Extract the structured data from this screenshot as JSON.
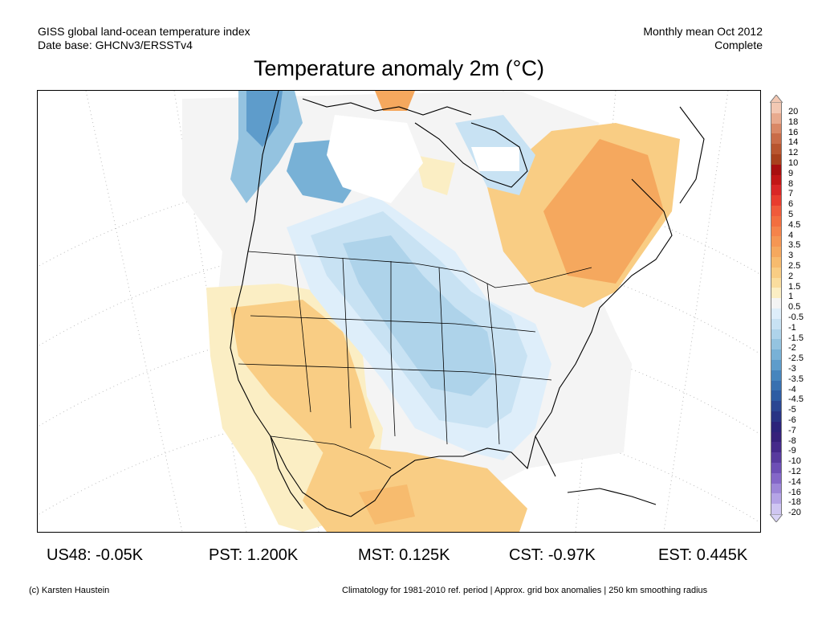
{
  "header": {
    "left_line1": "GISS global land-ocean temperature index",
    "left_line2": "Date base: GHCNv3/ERSSTv4",
    "right_line1": "Monthly mean Oct 2012",
    "right_line2": "Complete"
  },
  "title": "Temperature anomaly 2m (°C)",
  "colorbar": {
    "labels": [
      "20",
      "18",
      "16",
      "14",
      "12",
      "10",
      "9",
      "8",
      "7",
      "6",
      "5",
      "4.5",
      "4",
      "3.5",
      "3",
      "2.5",
      "2",
      "1.5",
      "1",
      "0.5",
      "-0.5",
      "-1",
      "-1.5",
      "-2",
      "-2.5",
      "-3",
      "-3.5",
      "-4",
      "-4.5",
      "-5",
      "-6",
      "-7",
      "-8",
      "-9",
      "-10",
      "-12",
      "-14",
      "-16",
      "-18",
      "-20"
    ],
    "colors": [
      "#f3c8b3",
      "#e8aa8e",
      "#d98866",
      "#c96c48",
      "#b8552f",
      "#a8401c",
      "#a80f0f",
      "#c21616",
      "#d92626",
      "#e83c2e",
      "#f05a3a",
      "#f36e3f",
      "#f5834a",
      "#f59653",
      "#f5a85e",
      "#f7bb6e",
      "#f9cd84",
      "#fadd9e",
      "#fbeec4",
      "#f4f4f4",
      "#deeefa",
      "#c8e2f3",
      "#aed3ea",
      "#94c3e0",
      "#78b1d6",
      "#5e9ccb",
      "#4785bd",
      "#3870b0",
      "#2d5ca3",
      "#2a4692",
      "#283484",
      "#2b237a",
      "#36217a",
      "#452a8a",
      "#583b9e",
      "#6d4fb5",
      "#8467c8",
      "#9d86d8",
      "#b5a4e6",
      "#cfc6f2"
    ],
    "nodata_top": "#f3c8b3",
    "nodata_bottom": "#d8d3f6"
  },
  "stats": [
    {
      "label": "US48:",
      "value": "-0.05K"
    },
    {
      "label": "PST:",
      "value": "1.200K"
    },
    {
      "label": "MST:",
      "value": "0.125K"
    },
    {
      "label": "CST:",
      "value": "-0.97K"
    },
    {
      "label": "EST:",
      "value": "0.445K"
    }
  ],
  "footer": {
    "left": "(c) Karsten Haustein",
    "right": "Climatology for 1981-2010 ref. period | Approx. grid box anomalies | 250 km smoothing radius"
  },
  "map": {
    "region": "North America",
    "warm_color_light": "#fbeec4",
    "warm_color_mid": "#f9cd84",
    "warm_color_strong": "#f7bb6e",
    "warm_color_orange": "#f5a85e",
    "cool_color_light": "#deeefa",
    "cool_color_mid": "#c8e2f3",
    "cool_color_strong": "#94c3e0",
    "cool_color_deep": "#5e9ccb",
    "neutral_color": "#f4f4f4"
  }
}
